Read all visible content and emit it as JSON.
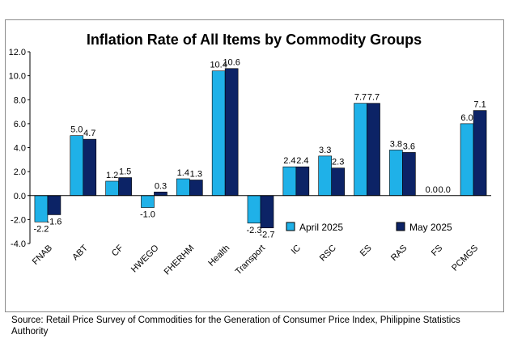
{
  "chart_data": {
    "type": "bar",
    "title": "Inflation Rate of All Items by Commodity Groups",
    "categories": [
      "FNAB",
      "ABT",
      "CF",
      "HWEGO",
      "FHERHM",
      "Health",
      "Transport",
      "IC",
      "RSC",
      "ES",
      "RAS",
      "FS",
      "PCMGS"
    ],
    "series": [
      {
        "name": "April 2025",
        "values": [
          -2.2,
          5.0,
          1.2,
          -1.0,
          1.4,
          10.4,
          -2.3,
          2.4,
          3.3,
          7.7,
          3.8,
          0.0,
          6.0
        ]
      },
      {
        "name": "May 2025",
        "values": [
          -1.6,
          4.7,
          1.5,
          0.3,
          1.3,
          10.6,
          -2.7,
          2.4,
          2.3,
          7.7,
          3.6,
          0.0,
          7.1
        ]
      }
    ],
    "value_labels": {
      "April 2025": [
        "-2.2",
        "5.0",
        "1.2",
        "-1.0",
        "1.4",
        "10.4",
        "-2.3",
        "2.4",
        "3.3",
        "7.7",
        "3.8",
        "0.0",
        "6.0"
      ],
      "May 2025": [
        "-1.6",
        "4.7",
        "1.5",
        "0.3",
        "1.3",
        "10.6",
        "-2.7",
        "2.4",
        "2.3",
        "7.7",
        "3.6",
        "0.0",
        "7.1"
      ]
    },
    "ylim": [
      -4.0,
      12.0
    ],
    "yticks": [
      "12.0",
      "10.0",
      "8.0",
      "6.0",
      "4.0",
      "2.0",
      "0.0",
      "-2.0",
      "-4.0"
    ],
    "ytick_values": [
      12,
      10,
      8,
      6,
      4,
      2,
      0,
      -2,
      -4
    ],
    "xlabel": "",
    "ylabel": "",
    "grid": false,
    "legend_position": "lower-right",
    "colors": {
      "April 2025": "#1fb1e8",
      "May 2025": "#0c2366",
      "outline": "#000000"
    }
  },
  "source_note": "Source: Retail Price Survey of Commodities for the Generation of Consumer Price Index, Philippine Statistics Authority"
}
